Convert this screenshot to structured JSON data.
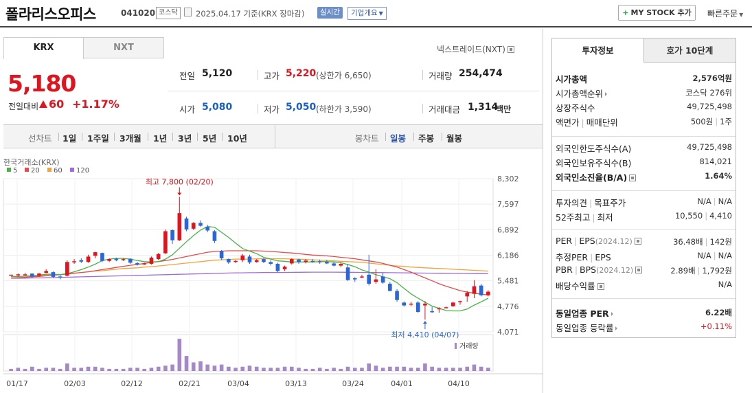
{
  "header": {
    "company_name": "폴라리스오피스",
    "code": "041020",
    "market": "코스닥",
    "date_text": "2025.04.17 기준(KRX 장마감)",
    "realtime": "실시간",
    "company_info": "기업개요",
    "mystock": "MY STOCK 추가",
    "quick_order": "빠른주문"
  },
  "tabs": {
    "krx": "KRX",
    "nxt": "NXT",
    "nextrade": "넥스트레이드(NXT)"
  },
  "quote": {
    "price": "5,180",
    "change_label": "전일대비",
    "change": "60",
    "change_pct": "+1.17%",
    "prev_label": "전일",
    "prev": "5,120",
    "high_label": "고가",
    "high": "5,220",
    "upper_limit": "(상한가 6,650)",
    "volume_label": "거래량",
    "volume": "254,474",
    "open_label": "시가",
    "open": "5,080",
    "low_label": "저가",
    "low": "5,050",
    "lower_limit": "(하한가 3,590)",
    "amount_label": "거래대금",
    "amount": "1,314",
    "amount_unit": "백만"
  },
  "toolbar": {
    "line_label": "선차트",
    "line_periods": [
      "1일",
      "1주일",
      "3개월",
      "1년",
      "3년",
      "5년",
      "10년"
    ],
    "candle_label": "봉차트",
    "candle_periods": [
      "일봉",
      "주봉",
      "월봉"
    ]
  },
  "chart_data": {
    "type": "candlestick",
    "source_label": "한국거래소(KRX)",
    "legend": [
      {
        "name": "5",
        "color": "#47b347"
      },
      {
        "name": "20",
        "color": "#e54b4b"
      },
      {
        "name": "60",
        "color": "#f4a23c"
      },
      {
        "name": "120",
        "color": "#a06ad8"
      }
    ],
    "y_ticks": [
      "8,302",
      "7,597",
      "6,892",
      "6,186",
      "5,481",
      "4,776",
      "4,071"
    ],
    "ylim": [
      4071,
      8302
    ],
    "x_ticks": [
      "01/17",
      "02/03",
      "02/12",
      "02/21",
      "03/04",
      "03/13",
      "03/24",
      "04/01",
      "04/10"
    ],
    "max_annotation": "최고 7,800 (02/20)",
    "min_annotation": "최저 4,410 (04/07)",
    "volume_label": "거래량",
    "candles": [
      [
        5650,
        5650,
        5650,
        5650
      ],
      [
        5640,
        5680,
        5600,
        5660
      ],
      [
        5650,
        5700,
        5620,
        5660
      ],
      [
        5680,
        5690,
        5550,
        5600
      ],
      [
        5620,
        5700,
        5600,
        5680
      ],
      [
        5700,
        5800,
        5690,
        5750
      ],
      [
        5720,
        5740,
        5550,
        5590
      ],
      [
        5600,
        5640,
        5520,
        5580
      ],
      [
        5620,
        6050,
        5600,
        6000
      ],
      [
        5990,
        6080,
        5950,
        6020
      ],
      [
        6050,
        6100,
        5970,
        6010
      ],
      [
        6000,
        6200,
        5980,
        6150
      ],
      [
        6170,
        6280,
        6100,
        6270
      ],
      [
        6250,
        6260,
        6000,
        6030
      ],
      [
        6030,
        6100,
        6000,
        6080
      ],
      [
        6090,
        6120,
        6020,
        6050
      ],
      [
        6050,
        6100,
        6030,
        6080
      ],
      [
        6090,
        6100,
        5950,
        5980
      ],
      [
        5970,
        6000,
        5900,
        5930
      ],
      [
        5940,
        5980,
        5920,
        5960
      ],
      [
        5950,
        6150,
        5930,
        6120
      ],
      [
        6080,
        6250,
        6050,
        6220
      ],
      [
        6240,
        6900,
        6220,
        6850
      ],
      [
        6880,
        6900,
        6500,
        6600
      ],
      [
        6600,
        7800,
        6580,
        7350
      ],
      [
        7200,
        7250,
        6850,
        6900
      ],
      [
        6920,
        7100,
        6880,
        7080
      ],
      [
        7080,
        7150,
        6970,
        7000
      ],
      [
        6970,
        7030,
        6820,
        6870
      ],
      [
        6850,
        6880,
        6520,
        6580
      ],
      [
        6300,
        6330,
        6050,
        6100
      ],
      [
        6080,
        6100,
        5950,
        5990
      ],
      [
        6010,
        6060,
        5970,
        6030
      ],
      [
        6050,
        6220,
        6000,
        6180
      ],
      [
        6150,
        6200,
        5950,
        5990
      ],
      [
        6000,
        6080,
        5980,
        6050
      ],
      [
        6080,
        6100,
        5970,
        6000
      ],
      [
        6000,
        6050,
        5900,
        5950
      ],
      [
        5950,
        5980,
        5720,
        5750
      ],
      [
        5800,
        5900,
        5750,
        5870
      ],
      [
        5960,
        6100,
        5930,
        6080
      ],
      [
        6070,
        6090,
        5950,
        6000
      ],
      [
        6000,
        6080,
        5960,
        6040
      ],
      [
        6030,
        6080,
        5980,
        6020
      ],
      [
        6020,
        6070,
        5950,
        6000
      ],
      [
        6000,
        6060,
        5940,
        5960
      ],
      [
        5960,
        6000,
        5880,
        5900
      ],
      [
        5900,
        5980,
        5860,
        5950
      ],
      [
        5850,
        5950,
        5480,
        5500
      ],
      [
        5550,
        5580,
        5450,
        5520
      ],
      [
        5600,
        5650,
        5550,
        5600
      ],
      [
        5650,
        6200,
        5350,
        5400
      ],
      [
        5450,
        5800,
        5400,
        5520
      ],
      [
        5600,
        5700,
        5400,
        5430
      ],
      [
        5400,
        5450,
        5190,
        5200
      ],
      [
        5200,
        5250,
        4900,
        4950
      ],
      [
        4880,
        4910,
        4770,
        4800
      ],
      [
        4840,
        4900,
        4780,
        4850
      ],
      [
        4880,
        4920,
        4600,
        4620
      ],
      [
        4800,
        4920,
        4410,
        4850
      ],
      [
        4640,
        4760,
        4600,
        4620
      ],
      [
        4700,
        4750,
        4600,
        4720
      ],
      [
        4740,
        4770,
        4720,
        4750
      ],
      [
        4780,
        4900,
        4760,
        4880
      ],
      [
        4900,
        4930,
        4820,
        4920
      ],
      [
        5050,
        5200,
        4900,
        5150
      ],
      [
        5120,
        5500,
        5000,
        5330
      ],
      [
        5350,
        5400,
        5050,
        5080
      ],
      [
        5080,
        5220,
        5050,
        5180
      ]
    ],
    "ma5": [
      5600,
      5600,
      5610,
      5620,
      5640,
      5660,
      5660,
      5650,
      5680,
      5730,
      5790,
      5860,
      5940,
      6040,
      6080,
      6100,
      6100,
      6080,
      6040,
      6010,
      6000,
      6010,
      6080,
      6200,
      6380,
      6560,
      6730,
      6880,
      6980,
      6960,
      6820,
      6680,
      6520,
      6370,
      6300,
      6230,
      6130,
      6080,
      6030,
      6020,
      6000,
      6000,
      6000,
      6000,
      6010,
      6010,
      6000,
      5980,
      5930,
      5870,
      5780,
      5720,
      5650,
      5590,
      5540,
      5430,
      5270,
      5120,
      5000,
      4890,
      4780,
      4720,
      4660,
      4650,
      4650,
      4700,
      4810,
      4900,
      5000
    ],
    "ma20": [
      5560,
      5570,
      5580,
      5590,
      5600,
      5620,
      5640,
      5650,
      5670,
      5690,
      5710,
      5730,
      5760,
      5790,
      5820,
      5850,
      5880,
      5910,
      5930,
      5960,
      5990,
      6010,
      6040,
      6070,
      6110,
      6150,
      6190,
      6230,
      6270,
      6290,
      6300,
      6310,
      6310,
      6310,
      6310,
      6310,
      6300,
      6290,
      6280,
      6260,
      6250,
      6230,
      6210,
      6190,
      6180,
      6170,
      6150,
      6130,
      6110,
      6090,
      6060,
      6030,
      6000,
      5960,
      5910,
      5860,
      5790,
      5720,
      5640,
      5560,
      5480,
      5400,
      5330,
      5270,
      5210,
      5170,
      5140,
      5110,
      5090
    ],
    "ma60": [
      5600,
      5600,
      5610,
      5610,
      5620,
      5630,
      5640,
      5650,
      5670,
      5690,
      5710,
      5730,
      5750,
      5760,
      5780,
      5800,
      5820,
      5830,
      5840,
      5860,
      5870,
      5890,
      5910,
      5930,
      5950,
      5970,
      5990,
      6010,
      6030,
      6050,
      6060,
      6070,
      6080,
      6080,
      6080,
      6090,
      6090,
      6090,
      6090,
      6090,
      6080,
      6080,
      6070,
      6060,
      6050,
      6040,
      6030,
      6020,
      6010,
      6000,
      5990,
      5970,
      5950,
      5930,
      5910,
      5890,
      5880,
      5860,
      5850,
      5840,
      5830,
      5820,
      5810,
      5800,
      5790,
      5780,
      5770,
      5760,
      5750
    ],
    "ma120": [
      5550,
      5550,
      5555,
      5560,
      5560,
      5565,
      5570,
      5575,
      5580,
      5585,
      5590,
      5595,
      5600,
      5605,
      5610,
      5615,
      5620,
      5625,
      5630,
      5635,
      5640,
      5645,
      5650,
      5655,
      5660,
      5665,
      5670,
      5675,
      5680,
      5685,
      5690,
      5695,
      5700,
      5700,
      5705,
      5705,
      5710,
      5710,
      5710,
      5712,
      5714,
      5716,
      5718,
      5720,
      5720,
      5720,
      5720,
      5718,
      5716,
      5714,
      5712,
      5710,
      5708,
      5706,
      5704,
      5702,
      5700,
      5698,
      5696,
      5694,
      5692,
      5690,
      5688,
      5686,
      5684,
      5682,
      5680,
      5678,
      5676
    ],
    "volumes": [
      2,
      3,
      2,
      4,
      2,
      3,
      3,
      2,
      7,
      3,
      3,
      4,
      4,
      3,
      2,
      2,
      2,
      3,
      3,
      2,
      3,
      4,
      5,
      6,
      30,
      14,
      8,
      9,
      6,
      5,
      6,
      4,
      3,
      4,
      5,
      4,
      3,
      3,
      3,
      4,
      4,
      3,
      2,
      2,
      3,
      2,
      3,
      2,
      4,
      3,
      3,
      7,
      5,
      3,
      4,
      4,
      4,
      3,
      3,
      7,
      4,
      3,
      3,
      3,
      3,
      4,
      6,
      4,
      3
    ]
  },
  "invest": {
    "tab_invest": "투자정보",
    "tab_hoga": "호가 10단계",
    "rows1": [
      {
        "label": "시가총액",
        "value": "2,576억원",
        "bold": true
      },
      {
        "label": "시가총액순위",
        "value": "코스닥 276위",
        "arrow": true
      },
      {
        "label": "상장주식수",
        "value": "49,725,498"
      },
      {
        "label": "액면가",
        "label2": "매매단위",
        "value": "500원",
        "value2": "1주"
      }
    ],
    "rows2": [
      {
        "label": "외국인한도주식수(A)",
        "value": "49,725,498"
      },
      {
        "label": "외국인보유주식수(B)",
        "value": "814,021"
      },
      {
        "label": "외국인소진율(B/A)",
        "value": "1.64%",
        "bold": true,
        "help": true
      }
    ],
    "rows3": [
      {
        "label": "투자의견",
        "label2": "목표주가",
        "value": "N/A",
        "value2": "N/A"
      },
      {
        "label": "52주최고",
        "label2": "최저",
        "value": "10,550",
        "value2": "4,410"
      }
    ],
    "rows4": [
      {
        "label": "PER",
        "label2": "EPS",
        "sub": "(2024.12)",
        "value": "36.48배",
        "value2": "142원"
      },
      {
        "label": "추정PER",
        "label2": "EPS",
        "value": "N/A",
        "value2": "N/A"
      },
      {
        "label": "PBR",
        "label2": "BPS",
        "sub": "(2024.12)",
        "value": "2.89배",
        "value2": "1,792원"
      },
      {
        "label": "배당수익률",
        "value": "N/A",
        "help": true
      }
    ],
    "rows5": [
      {
        "label": "동일업종 PER",
        "value": "6.22배",
        "bold": true,
        "arrow": true
      },
      {
        "label": "동일업종 등락률",
        "value": "+0.11%",
        "arrow": true,
        "red": true
      }
    ]
  }
}
